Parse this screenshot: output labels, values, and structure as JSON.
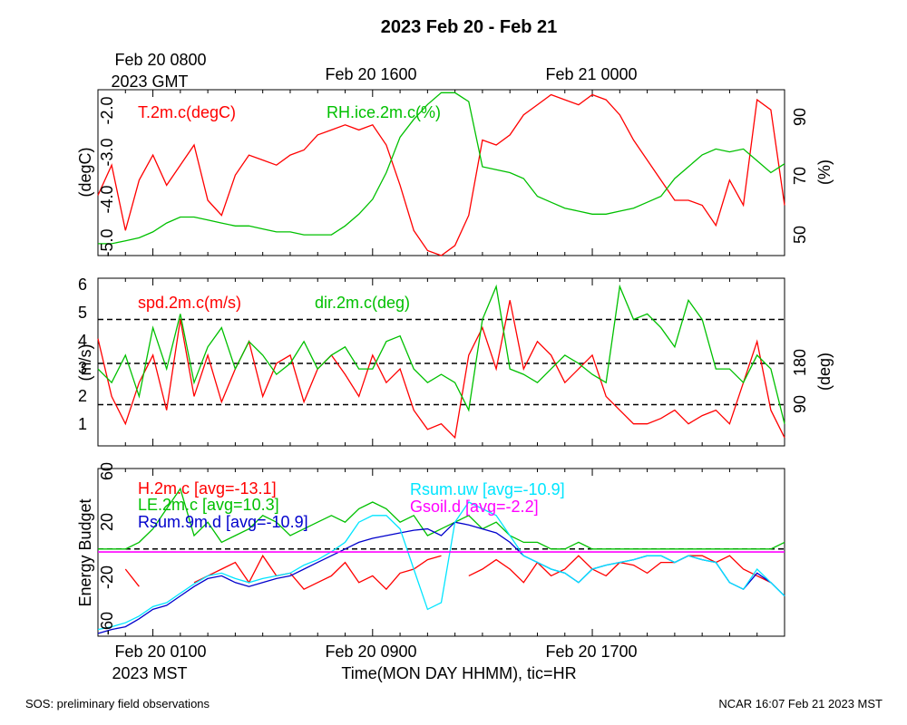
{
  "title": "2023 Feb 20 - Feb 21",
  "top_axis": {
    "labels": [
      "Feb 20 0800",
      "Feb 20 1600",
      "Feb 21 0000"
    ],
    "sublabel": "2023 GMT"
  },
  "bottom_axis": {
    "labels": [
      "Feb 20 0100",
      "Feb 20 0900",
      "Feb 20 1700"
    ],
    "sublabel": "2023 MST",
    "xlabel": "Time(MON DAY HHMM), tic=HR"
  },
  "footer": {
    "left": "SOS: preliminary field observations",
    "right": "NCAR 16:07 Feb 21 2023 MST"
  },
  "colors": {
    "red": "#ff0000",
    "green": "#00c000",
    "blue": "#0000cc",
    "cyan": "#00e5ff",
    "magenta": "#ff00ff"
  },
  "chart_data": [
    {
      "type": "line",
      "ylabel_left": "(degC)",
      "ylabel_right": "(%)",
      "yticks_left": [
        "-2.0",
        "-3.0",
        "-4.0",
        "-5.0"
      ],
      "ylim_left": [
        -5.0,
        -1.7
      ],
      "yticks_right": [
        "90",
        "70",
        "50"
      ],
      "ylim_right": [
        44,
        100
      ],
      "x_hours": [
        0,
        25
      ],
      "series": [
        {
          "name": "T.2m.c(degC)",
          "axis": "left",
          "x": [
            0,
            0.5,
            1,
            1.5,
            2,
            2.5,
            3,
            3.5,
            4,
            4.5,
            5,
            5.5,
            6,
            6.5,
            7,
            7.5,
            8,
            8.5,
            9,
            9.5,
            10,
            10.5,
            11,
            11.5,
            12,
            12.5,
            13,
            13.5,
            14,
            14.5,
            15,
            15.5,
            16,
            16.5,
            17,
            17.5,
            18,
            18.5,
            19,
            19.5,
            20,
            20.5,
            21,
            21.5,
            22,
            22.5,
            23,
            23.5,
            24,
            24.5,
            25
          ],
          "values": [
            -3.8,
            -3.2,
            -4.5,
            -3.5,
            -3.0,
            -3.6,
            -3.2,
            -2.8,
            -3.9,
            -4.2,
            -3.4,
            -3.0,
            -3.1,
            -3.2,
            -3.0,
            -2.9,
            -2.6,
            -2.5,
            -2.4,
            -2.5,
            -2.4,
            -2.8,
            -3.6,
            -4.5,
            -4.9,
            -5.0,
            -4.8,
            -4.2,
            -2.7,
            -2.8,
            -2.6,
            -2.2,
            -2.0,
            -1.8,
            -1.9,
            -2.0,
            -1.8,
            -1.9,
            -2.2,
            -2.7,
            -3.1,
            -3.5,
            -3.9,
            -3.9,
            -4.0,
            -4.4,
            -3.5,
            -4.0,
            -1.9,
            -2.1,
            -4.0
          ]
        },
        {
          "name": "RH.ice.2m.c(%)",
          "axis": "right",
          "x": [
            0,
            0.5,
            1,
            1.5,
            2,
            2.5,
            3,
            3.5,
            4,
            4.5,
            5,
            5.5,
            6,
            6.5,
            7,
            7.5,
            8,
            8.5,
            9,
            9.5,
            10,
            10.5,
            11,
            11.5,
            12,
            12.5,
            13,
            13.5,
            14,
            14.5,
            15,
            15.5,
            16,
            16.5,
            17,
            17.5,
            18,
            18.5,
            19,
            19.5,
            20,
            20.5,
            21,
            21.5,
            22,
            22.5,
            23,
            23.5,
            24,
            24.5,
            25
          ],
          "values": [
            48,
            48,
            49,
            50,
            52,
            55,
            57,
            57,
            56,
            55,
            54,
            54,
            53,
            52,
            52,
            51,
            51,
            51,
            54,
            58,
            63,
            72,
            84,
            90,
            95,
            99,
            99,
            96,
            74,
            73,
            72,
            70,
            64,
            62,
            60,
            59,
            58,
            58,
            59,
            60,
            62,
            64,
            70,
            74,
            78,
            80,
            79,
            80,
            76,
            72,
            75
          ]
        }
      ]
    },
    {
      "type": "line",
      "ylabel_left": "(m/s)",
      "ylabel_right": "(deg)",
      "yticks_left": [
        "1",
        "2",
        "3",
        "4",
        "5",
        "6"
      ],
      "ylim_left": [
        0.2,
        6.3
      ],
      "yticks_right": [
        "90",
        "180"
      ],
      "ylim_right": [
        0,
        360
      ],
      "x_hours": [
        0,
        25
      ],
      "series": [
        {
          "name": "spd.2m.c(m/s)",
          "axis": "left",
          "x": [
            0,
            0.5,
            1,
            1.5,
            2,
            2.5,
            3,
            3.5,
            4,
            4.5,
            5,
            5.5,
            6,
            6.5,
            7,
            7.5,
            8,
            8.5,
            9,
            9.5,
            10,
            10.5,
            11,
            11.5,
            12,
            12.5,
            13,
            13.5,
            14,
            14.5,
            15,
            15.5,
            16,
            16.5,
            17,
            17.5,
            18,
            18.5,
            19,
            19.5,
            20,
            20.5,
            21,
            21.5,
            22,
            22.5,
            23,
            23.5,
            24,
            24.5,
            25
          ],
          "values": [
            4.1,
            2.0,
            1.0,
            2.5,
            3.5,
            1.5,
            4.8,
            2.0,
            3.5,
            1.8,
            3.0,
            4.0,
            2.0,
            3.2,
            3.5,
            1.8,
            3.0,
            3.5,
            2.8,
            2.0,
            3.5,
            2.5,
            3.0,
            1.5,
            0.8,
            1.0,
            0.5,
            3.5,
            4.5,
            3.0,
            5.5,
            3.0,
            4.0,
            3.5,
            2.5,
            3.0,
            3.5,
            2.0,
            1.5,
            1.0,
            1.0,
            1.2,
            1.5,
            1.0,
            1.3,
            1.5,
            1.0,
            2.5,
            4.0,
            1.5,
            0.5
          ]
        },
        {
          "name": "dir.2m.c(deg)",
          "axis": "left",
          "x": [
            0,
            0.5,
            1,
            1.5,
            2,
            2.5,
            3,
            3.5,
            4,
            4.5,
            5,
            5.5,
            6,
            6.5,
            7,
            7.5,
            8,
            8.5,
            9,
            9.5,
            10,
            10.5,
            11,
            11.5,
            12,
            12.5,
            13,
            13.5,
            14,
            14.5,
            15,
            15.5,
            16,
            16.5,
            17,
            17.5,
            18,
            18.5,
            19,
            19.5,
            20,
            20.5,
            21,
            21.5,
            22,
            22.5,
            23,
            23.5,
            24,
            24.5,
            25
          ],
          "values": [
            3.0,
            2.5,
            3.5,
            2.0,
            4.5,
            3.0,
            5.0,
            2.5,
            3.8,
            4.5,
            3.0,
            4.0,
            3.5,
            2.8,
            3.2,
            4.0,
            3.0,
            3.5,
            3.8,
            3.0,
            3.0,
            4.0,
            4.2,
            3.0,
            2.5,
            2.8,
            2.5,
            1.5,
            4.8,
            6.0,
            3.0,
            2.8,
            2.5,
            3.0,
            3.5,
            3.2,
            2.8,
            2.5,
            6.0,
            4.8,
            5.0,
            4.5,
            3.8,
            5.5,
            4.8,
            3.0,
            3.0,
            2.5,
            3.5,
            3.0,
            1.0
          ]
        }
      ],
      "reference_lines_left": [
        1.7,
        3.2,
        4.8
      ]
    },
    {
      "type": "line",
      "ylabel_left": "Energy Budget",
      "yticks_left": [
        "60",
        "20",
        "-20",
        "-60"
      ],
      "ylim_left": [
        -65,
        60
      ],
      "x_hours": [
        0,
        25
      ],
      "series": [
        {
          "name": "H.2m.c [avg=-13.1]",
          "x": [
            1,
            1.5,
            2,
            2.5,
            3,
            3.5,
            4,
            4.5,
            5,
            5.5,
            6,
            6.5,
            7,
            7.5,
            8,
            8.5,
            9,
            9.5,
            10,
            10.5,
            11,
            11.5,
            12,
            12.5,
            13,
            13.5,
            14,
            14.5,
            15,
            15.5,
            16,
            16.5,
            17,
            17.5,
            18,
            18.5,
            19,
            19.5,
            20,
            20.5,
            21,
            21.5,
            22,
            22.5,
            23,
            23.5,
            24,
            24.5
          ],
          "values": [
            -15,
            -28,
            null,
            -50,
            null,
            -25,
            -20,
            -15,
            -10,
            -25,
            -5,
            -20,
            -18,
            -30,
            -25,
            -20,
            -10,
            -25,
            -20,
            -30,
            -18,
            -15,
            -8,
            -5,
            null,
            -20,
            -15,
            -8,
            -15,
            -25,
            -10,
            -20,
            -15,
            -5,
            -15,
            -20,
            -10,
            -12,
            -18,
            -10,
            -10,
            -5,
            -5,
            -10,
            -5,
            -15,
            -20,
            -25
          ]
        },
        {
          "name": "LE.2m.c [avg=10.3]",
          "x": [
            0,
            0.5,
            1,
            1.5,
            2,
            2.5,
            3,
            3.5,
            4,
            4.5,
            5,
            5.5,
            6,
            6.5,
            7,
            7.5,
            8,
            8.5,
            9,
            9.5,
            10,
            10.5,
            11,
            11.5,
            12,
            12.5,
            13,
            13.5,
            14,
            14.5,
            15,
            15.5,
            16,
            16.5,
            17,
            17.5,
            18,
            18.5,
            19,
            19.5,
            20,
            20.5,
            21,
            21.5,
            22,
            22.5,
            23,
            23.5,
            24,
            24.5,
            25
          ],
          "values": [
            0,
            0,
            0,
            5,
            15,
            30,
            45,
            10,
            20,
            5,
            10,
            15,
            25,
            20,
            10,
            15,
            20,
            25,
            20,
            30,
            35,
            30,
            20,
            25,
            10,
            15,
            20,
            25,
            15,
            20,
            10,
            5,
            5,
            0,
            0,
            5,
            0,
            0,
            0,
            0,
            0,
            0,
            0,
            0,
            0,
            0,
            0,
            0,
            0,
            0,
            5
          ]
        },
        {
          "name": "Rsum.9m.d [avg=-10.9]",
          "x": [
            0,
            0.5,
            1,
            1.5,
            2,
            2.5,
            3,
            3.5,
            4,
            4.5,
            5,
            5.5,
            6,
            6.5,
            7,
            7.5,
            8,
            8.5,
            9,
            9.5,
            10,
            10.5,
            11,
            11.5,
            12,
            12.5,
            13,
            13.5,
            14,
            14.5,
            15,
            15.5,
            16,
            16.5,
            17,
            17.5,
            18,
            18.5,
            19,
            19.5,
            20,
            20.5,
            21,
            21.5,
            22,
            22.5,
            23,
            23.5,
            24,
            24.5,
            25
          ],
          "values": [
            -63,
            -60,
            -58,
            -52,
            -45,
            -42,
            -35,
            -28,
            -22,
            -20,
            -25,
            -28,
            -25,
            -22,
            -20,
            -15,
            -10,
            -5,
            0,
            5,
            8,
            10,
            12,
            14,
            15,
            10,
            20,
            18,
            15,
            12,
            5,
            -5,
            -10,
            -15,
            -18,
            -25,
            -15,
            -12,
            -10,
            -8,
            -5,
            -5,
            -10,
            -5,
            -8,
            -10,
            -25,
            -30,
            -18,
            -25,
            -35
          ]
        },
        {
          "name": "Rsum.uw [avg=-10.9]",
          "x": [
            0,
            0.5,
            1,
            1.5,
            2,
            2.5,
            3,
            3.5,
            4,
            4.5,
            5,
            5.5,
            6,
            6.5,
            7,
            7.5,
            8,
            8.5,
            9,
            9.5,
            10,
            10.5,
            11,
            11.5,
            12,
            12.5,
            13,
            13.5,
            14,
            14.5,
            15,
            15.5,
            16,
            16.5,
            17,
            17.5,
            18,
            18.5,
            19,
            19.5,
            20,
            20.5,
            21,
            21.5,
            22,
            22.5,
            23,
            23.5,
            24,
            24.5,
            25
          ],
          "values": [
            -60,
            -58,
            -55,
            -50,
            -43,
            -40,
            -33,
            -26,
            -20,
            -18,
            -22,
            -25,
            -22,
            -20,
            -18,
            -12,
            -8,
            -2,
            5,
            20,
            25,
            25,
            15,
            -15,
            -45,
            -40,
            20,
            35,
            30,
            25,
            10,
            -5,
            -10,
            -15,
            -18,
            -25,
            -15,
            -12,
            -10,
            -8,
            -5,
            -5,
            -10,
            -5,
            -8,
            -10,
            -25,
            -30,
            -15,
            -25,
            -35
          ]
        },
        {
          "name": "Gsoil.d [avg=-2.2]",
          "x": [
            0,
            25
          ],
          "values": [
            -2.2,
            -2.2
          ]
        }
      ],
      "reference_lines_left": [
        0
      ]
    }
  ]
}
